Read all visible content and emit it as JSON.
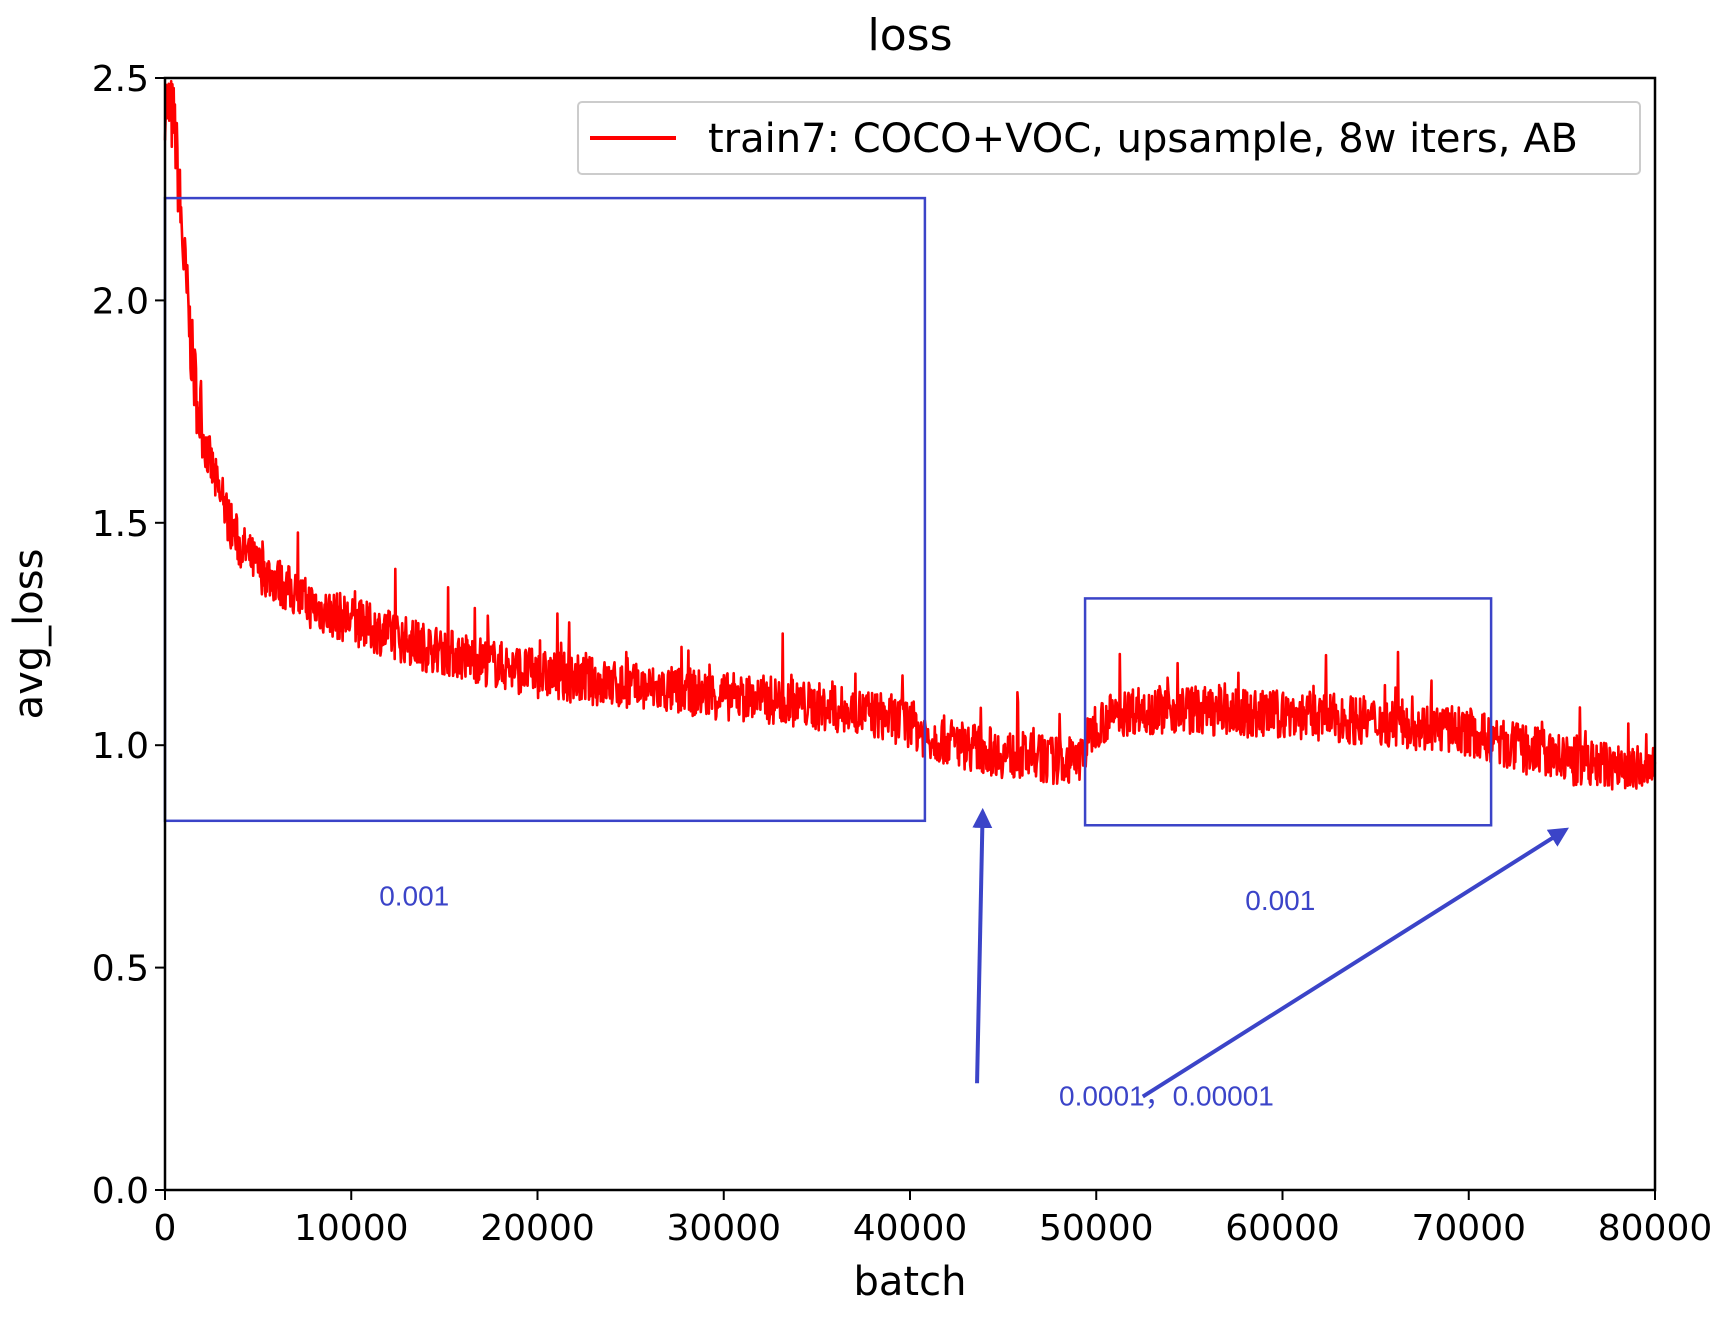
{
  "colors": {
    "series": "#ff0000",
    "annotation": "#3b44c8",
    "axis": "#000000",
    "background": "#ffffff"
  },
  "chart_data": {
    "type": "line",
    "title": "loss",
    "xlabel": "batch",
    "ylabel": "avg_loss",
    "xlim": [
      0,
      80000
    ],
    "ylim": [
      0.0,
      2.5
    ],
    "xticks": [
      0,
      10000,
      20000,
      30000,
      40000,
      50000,
      60000,
      70000,
      80000
    ],
    "yticks": [
      0.0,
      0.5,
      1.0,
      1.5,
      2.0,
      2.5
    ],
    "ytick_labels": [
      "0.0",
      "0.5",
      "1.0",
      "1.5",
      "2.0",
      "2.5"
    ],
    "grid": false,
    "legend": "top-right",
    "series": [
      {
        "name": "train7: COCO+VOC, upsample, 8w iters, AB",
        "color": "#ff0000",
        "x": [
          0,
          500,
          1000,
          1500,
          2000,
          3000,
          4000,
          5000,
          6000,
          7000,
          8000,
          10000,
          12000,
          14000,
          16000,
          18000,
          20000,
          22000,
          25000,
          28000,
          30000,
          33000,
          36000,
          38000,
          40000,
          41000,
          43000,
          45000,
          47000,
          49000,
          50000,
          52000,
          55000,
          58000,
          60000,
          63000,
          66000,
          68000,
          70000,
          72000,
          74000,
          76000,
          78000,
          80000
        ],
        "values": [
          2.45,
          2.4,
          2.1,
          1.85,
          1.7,
          1.55,
          1.45,
          1.4,
          1.37,
          1.34,
          1.31,
          1.28,
          1.25,
          1.22,
          1.2,
          1.18,
          1.16,
          1.15,
          1.13,
          1.12,
          1.11,
          1.1,
          1.08,
          1.07,
          1.05,
          1.02,
          1.0,
          0.98,
          0.97,
          0.96,
          1.05,
          1.08,
          1.08,
          1.07,
          1.07,
          1.06,
          1.05,
          1.04,
          1.03,
          1.0,
          0.98,
          0.96,
          0.95,
          0.94
        ]
      }
    ],
    "annotations": [
      {
        "type": "box",
        "x": [
          0,
          40800
        ],
        "y": [
          0.83,
          2.23
        ]
      },
      {
        "type": "box",
        "x": [
          49400,
          71200
        ],
        "y": [
          0.82,
          1.33
        ]
      },
      {
        "type": "text",
        "text": "0.001",
        "at": [
          11500,
          0.64
        ]
      },
      {
        "type": "text",
        "text": "0.001",
        "at": [
          58000,
          0.63
        ]
      },
      {
        "type": "text",
        "text": "0.0001，0.00001",
        "at": [
          48000,
          0.19
        ]
      },
      {
        "type": "arrow",
        "from": [
          43600,
          0.24
        ],
        "to": [
          43900,
          0.85
        ]
      },
      {
        "type": "arrow",
        "from": [
          52500,
          0.21
        ],
        "to": [
          75200,
          0.81
        ]
      }
    ]
  }
}
